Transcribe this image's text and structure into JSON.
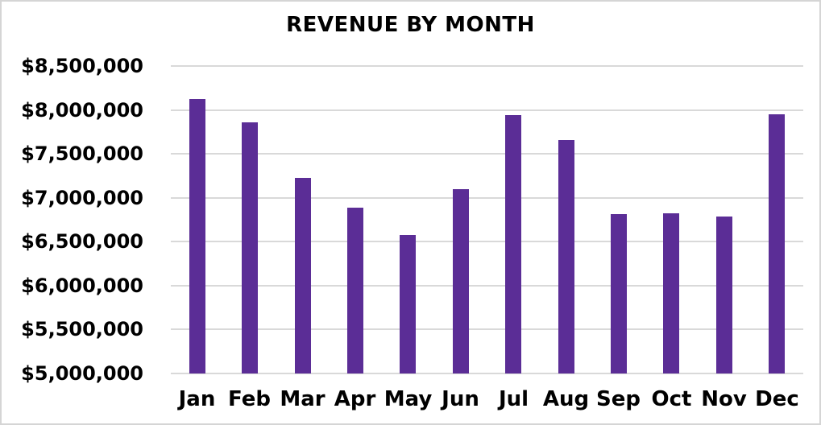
{
  "title": "REVENUE BY MONTH",
  "colors": {
    "bar": "#5B2D96",
    "gridline": "#D9D9D9",
    "axis_line": "#D9D9D9",
    "text": "#000000",
    "border": "#D5D5D5",
    "background": "#FFFFFF"
  },
  "chart_data": {
    "type": "bar",
    "title": "REVENUE BY MONTH",
    "categories": [
      "Jan",
      "Feb",
      "Mar",
      "Apr",
      "May",
      "Jun",
      "Jul",
      "Aug",
      "Sep",
      "Oct",
      "Nov",
      "Dec"
    ],
    "values": [
      8120000,
      7860000,
      7230000,
      6890000,
      6580000,
      7100000,
      7940000,
      7660000,
      6810000,
      6820000,
      6790000,
      7950000
    ],
    "xlabel": "",
    "ylabel": "",
    "ylim": [
      5000000,
      8500000
    ],
    "ytick_step": 500000,
    "ytick_values": [
      8500000,
      8000000,
      7500000,
      7000000,
      6500000,
      6000000,
      5500000,
      5000000
    ],
    "ytick_labels": [
      "$8,500,000",
      "$8,000,000",
      "$7,500,000",
      "$7,000,000",
      "$6,500,000",
      "$6,000,000",
      "$5,500,000",
      "$5,000,000"
    ],
    "grid": true,
    "legend": false
  }
}
